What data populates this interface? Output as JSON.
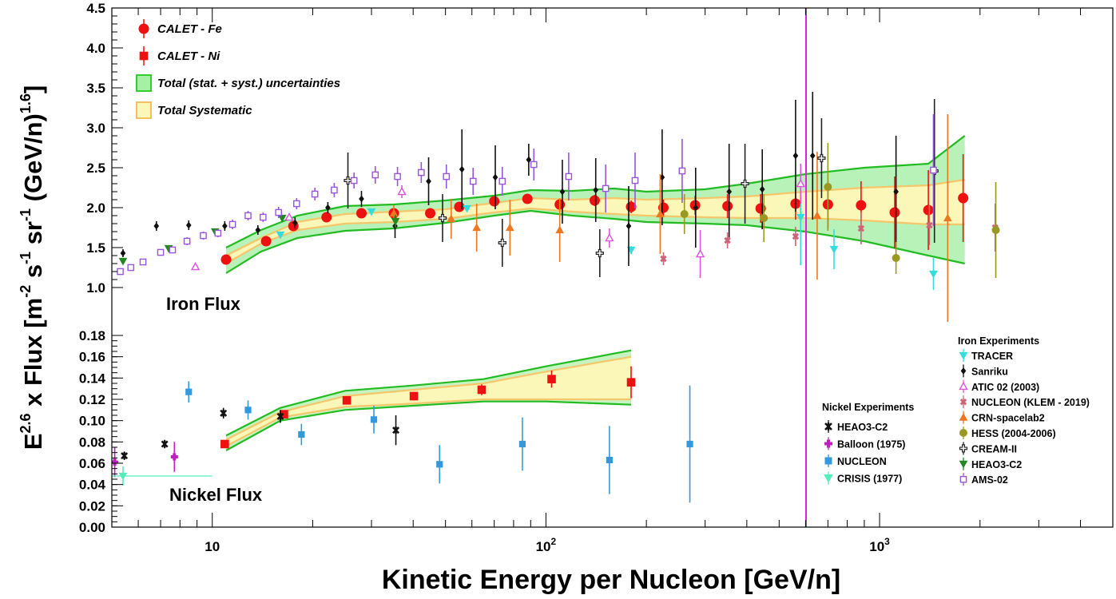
{
  "chart_data": [
    {
      "type": "scatter",
      "panel": "Iron Flux",
      "panel_label": "Iron Flux",
      "xlabel": "Kinetic Energy per Nucleon [GeV/n]",
      "ylabel_main": "E",
      "ylabel_sup1": "2.6",
      "ylabel_mid": " x Flux [m",
      "ylabel_sup2": "-2",
      "ylabel_mid2": " s",
      "ylabel_sup3": "-1",
      "ylabel_mid3": " sr",
      "ylabel_sup4": "-1",
      "ylabel_mid4": " (GeV/n)",
      "ylabel_sup5": "1.6",
      "ylabel_end": "]",
      "x_scale": "log",
      "xlim": [
        5,
        5000
      ],
      "ylim": [
        0.9,
        4.5
      ],
      "x_tick_labels": [
        {
          "v": 10,
          "label": "10"
        },
        {
          "v": 100,
          "label": "10"
        },
        {
          "v": 1000,
          "label": "10"
        }
      ],
      "x_tick_exps": [
        "",
        "2",
        "3"
      ],
      "y_tick_labels": [
        "1.0",
        "1.5",
        "2.0",
        "2.5",
        "3.0",
        "3.5",
        "4.0",
        "4.5"
      ],
      "y_ticks": [
        1.0,
        1.5,
        2.0,
        2.5,
        3.0,
        3.5,
        4.0,
        4.5
      ],
      "legend": [
        {
          "label": "CALET - Fe",
          "marker": "circle",
          "color": "#ee1111"
        },
        {
          "label": "CALET - Ni",
          "marker": "square",
          "color": "#ee1111"
        },
        {
          "label": "Total (stat. + syst.) uncertainties",
          "marker": "box",
          "color": "#33cc33",
          "fill": "#a6f0a6"
        },
        {
          "label": "Total Systematic",
          "marker": "box",
          "color": "#f5c060",
          "fill": "#fbf7b8"
        }
      ],
      "experiments_title": "Iron Experiments",
      "experiments": [
        {
          "label": "TRACER",
          "marker": "tri-down",
          "color": "#33dddd"
        },
        {
          "label": "Sanriku",
          "marker": "diamond",
          "color": "#111111"
        },
        {
          "label": "ATIC 02 (2003)",
          "marker": "tri-up-open",
          "color": "#dd55dd"
        },
        {
          "label": "NUCLEON (KLEM - 2019)",
          "marker": "x",
          "color": "#cc6677"
        },
        {
          "label": "CRN-spacelab2",
          "marker": "tri-up",
          "color": "#ee7722"
        },
        {
          "label": "HESS (2004-2006)",
          "marker": "circle",
          "color": "#999922"
        },
        {
          "label": "CREAM-II",
          "marker": "cross-open",
          "color": "#222222"
        },
        {
          "label": "HEAO3-C2",
          "marker": "tri-down",
          "color": "#228822"
        },
        {
          "label": "AMS-02",
          "marker": "square-open",
          "color": "#9955dd"
        }
      ],
      "band_total": {
        "x": [
          11,
          14,
          18,
          25,
          35,
          50,
          70,
          90,
          120,
          160,
          200,
          300,
          400,
          600,
          900,
          1400,
          1800
        ],
        "low": [
          1.18,
          1.45,
          1.62,
          1.71,
          1.74,
          1.81,
          1.9,
          1.96,
          1.9,
          1.86,
          1.82,
          1.8,
          1.78,
          1.7,
          1.58,
          1.4,
          1.3
        ],
        "high": [
          1.5,
          1.72,
          1.9,
          2.02,
          2.04,
          2.09,
          2.15,
          2.22,
          2.21,
          2.24,
          2.2,
          2.23,
          2.3,
          2.42,
          2.5,
          2.55,
          2.9
        ]
      },
      "band_syst": {
        "x": [
          11,
          14,
          18,
          25,
          35,
          50,
          70,
          90,
          120,
          160,
          200,
          300,
          400,
          600,
          900,
          1400,
          1800
        ],
        "low": [
          1.3,
          1.55,
          1.72,
          1.8,
          1.82,
          1.86,
          1.94,
          1.99,
          1.95,
          1.92,
          1.9,
          1.88,
          1.87,
          1.87,
          1.84,
          1.79,
          1.79
        ],
        "high": [
          1.4,
          1.62,
          1.82,
          1.92,
          1.95,
          1.98,
          2.06,
          2.12,
          2.1,
          2.12,
          2.1,
          2.12,
          2.14,
          2.2,
          2.25,
          2.28,
          2.35
        ]
      },
      "series": [
        {
          "name": "CALET - Fe",
          "marker": "circle",
          "color": "#ee1111",
          "x": [
            11,
            14.5,
            17.5,
            22,
            28,
            35,
            45,
            55,
            70,
            88,
            110,
            140,
            180,
            225,
            280,
            350,
            440,
            560,
            700,
            880,
            1110,
            1400,
            1780
          ],
          "y": [
            1.35,
            1.58,
            1.77,
            1.88,
            1.93,
            1.93,
            1.93,
            2.01,
            2.08,
            2.11,
            2.04,
            2.09,
            2.01,
            2.0,
            2.03,
            2.02,
            1.99,
            2.05,
            2.04,
            2.03,
            1.94,
            1.97,
            2.12
          ],
          "err": [
            0.02,
            0.02,
            0.03,
            0.03,
            0.03,
            0.03,
            0.04,
            0.04,
            0.05,
            0.05,
            0.06,
            0.07,
            0.08,
            0.1,
            0.12,
            0.15,
            0.18,
            0.2,
            0.3,
            0.3,
            0.45,
            0.5,
            0.55
          ]
        },
        {
          "name": "TRACER",
          "marker": "tri-down",
          "color": "#33dddd",
          "x": [
            16,
            30,
            58,
            180,
            580,
            730,
            1450
          ],
          "y": [
            1.66,
            1.95,
            1.99,
            1.47,
            1.88,
            1.48,
            1.17
          ],
          "err": [
            0.03,
            0.03,
            0.04,
            0.05,
            0.6,
            0.25,
            0.2
          ]
        },
        {
          "name": "Sanriku",
          "marker": "diamond",
          "color": "#111111",
          "x": [
            5.4,
            6.8,
            8.5,
            10.9,
            13.7,
            17.7,
            22.2,
            28,
            35.3,
            44.5,
            56,
            70.5,
            88.8,
            112,
            141,
            177,
            223,
            281,
            354,
            445,
            560,
            630,
            1120
          ],
          "y": [
            1.43,
            1.77,
            1.78,
            1.77,
            1.72,
            1.81,
            2.0,
            2.11,
            1.77,
            2.33,
            2.48,
            2.38,
            2.6,
            2.2,
            2.22,
            1.77,
            2.38,
            2.0,
            2.2,
            2.23,
            2.65,
            2.65,
            2.2
          ],
          "err": [
            0.05,
            0.06,
            0.06,
            0.06,
            0.06,
            0.07,
            0.07,
            0.1,
            0.15,
            0.3,
            0.5,
            0.4,
            0.2,
            0.4,
            0.4,
            0.5,
            0.6,
            0.5,
            0.6,
            0.5,
            0.7,
            0.8,
            0.7
          ]
        },
        {
          "name": "ATIC 02 (2003)",
          "marker": "tri-up-open",
          "color": "#dd55dd",
          "x": [
            8.9,
            17,
            37,
            155,
            290,
            580
          ],
          "y": [
            1.26,
            1.88,
            2.2,
            1.62,
            1.42,
            2.3
          ],
          "err": [
            0.02,
            0.04,
            0.08,
            0.12,
            0.3,
            0.25
          ]
        },
        {
          "name": "NUCLEON (KLEM - 2019)",
          "marker": "x",
          "color": "#cc6677",
          "x": [
            225,
            350,
            560,
            880,
            1410,
            2220
          ],
          "y": [
            1.36,
            1.59,
            1.64,
            1.74,
            1.78,
            1.75
          ],
          "err": [
            0.08,
            0.1,
            0.12,
            0.2,
            0.25,
            0.3
          ]
        },
        {
          "name": "CRN-spacelab2",
          "marker": "tri-up",
          "color": "#ee7722",
          "x": [
            35,
            52,
            62,
            78,
            110,
            220,
            650,
            1600
          ],
          "y": [
            1.93,
            1.86,
            1.75,
            1.75,
            1.72,
            1.92,
            1.9,
            1.87
          ],
          "err": [
            0.1,
            0.25,
            0.3,
            0.35,
            0.4,
            0.5,
            0.8,
            1.3
          ]
        },
        {
          "name": "HESS (2004-2006)",
          "marker": "circle",
          "color": "#999922",
          "x": [
            260,
            450,
            700,
            1120,
            2230
          ],
          "y": [
            1.92,
            1.87,
            2.26,
            1.37,
            1.72
          ],
          "err": [
            0.25,
            0.3,
            0.55,
            0.2,
            0.6
          ]
        },
        {
          "name": "CREAM-II",
          "marker": "cross-open",
          "color": "#222222",
          "x": [
            25.5,
            49,
            74,
            145,
            395,
            670,
            1460
          ],
          "y": [
            2.34,
            1.87,
            1.56,
            1.43,
            2.3,
            2.62,
            2.46
          ],
          "err": [
            0.35,
            0.3,
            0.3,
            0.3,
            0.5,
            0.5,
            0.9
          ]
        },
        {
          "name": "HEAO3-C2",
          "marker": "tri-down",
          "color": "#228822",
          "x": [
            5.4,
            7.4,
            10.2,
            16.2,
            35.4
          ],
          "y": [
            1.33,
            1.49,
            1.7,
            1.87,
            1.83
          ],
          "err": [
            0.03,
            0.03,
            0.03,
            0.04,
            0.08
          ]
        },
        {
          "name": "AMS-02",
          "marker": "square-open",
          "color": "#9955dd",
          "x": [
            5.3,
            5.7,
            6.2,
            7,
            7.6,
            8.4,
            9.4,
            10.4,
            11.5,
            12.8,
            14.2,
            15.8,
            17.9,
            20.3,
            23.2,
            26.6,
            30.8,
            35.9,
            42.3,
            50.3,
            60.5,
            74,
            92,
            117,
            151,
            185,
            256,
            1450
          ],
          "y": [
            1.2,
            1.25,
            1.32,
            1.44,
            1.47,
            1.58,
            1.65,
            1.68,
            1.79,
            1.9,
            1.88,
            1.94,
            2.05,
            2.17,
            2.22,
            2.34,
            2.41,
            2.39,
            2.44,
            2.39,
            2.33,
            2.33,
            2.54,
            2.39,
            2.24,
            2.34,
            2.46,
            2.47
          ],
          "err": [
            0.04,
            0.04,
            0.04,
            0.04,
            0.04,
            0.05,
            0.05,
            0.05,
            0.06,
            0.06,
            0.06,
            0.07,
            0.07,
            0.08,
            0.09,
            0.1,
            0.11,
            0.12,
            0.13,
            0.15,
            0.17,
            0.18,
            0.2,
            0.3,
            0.3,
            0.35,
            0.4,
            0.7
          ]
        }
      ]
    },
    {
      "type": "scatter",
      "panel": "Nickel Flux",
      "panel_label": "Nickel Flux",
      "x_scale": "log",
      "xlim": [
        5,
        5000
      ],
      "ylim": [
        0.0,
        0.18
      ],
      "y_tick_labels": [
        "0.00",
        "0.02",
        "0.04",
        "0.06",
        "0.08",
        "0.10",
        "0.12",
        "0.14",
        "0.16",
        "0.18"
      ],
      "y_ticks": [
        0,
        0.02,
        0.04,
        0.06,
        0.08,
        0.1,
        0.12,
        0.14,
        0.16,
        0.18
      ],
      "experiments_title": "Nickel Experiments",
      "experiments": [
        {
          "label": "HEAO3-C2",
          "marker": "star",
          "color": "#111111"
        },
        {
          "label": "Balloon (1975)",
          "marker": "plus",
          "color": "#bb22bb"
        },
        {
          "label": "NUCLEON",
          "marker": "square",
          "color": "#3399dd"
        },
        {
          "label": "CRISIS (1977)",
          "marker": "tri-down",
          "color": "#55eebb"
        }
      ],
      "band_total": {
        "x": [
          11,
          16,
          25,
          40,
          65,
          100,
          180
        ],
        "low": [
          0.072,
          0.1,
          0.11,
          0.114,
          0.118,
          0.118,
          0.115
        ],
        "high": [
          0.086,
          0.112,
          0.128,
          0.133,
          0.139,
          0.151,
          0.166
        ]
      },
      "band_syst": {
        "x": [
          11,
          16,
          25,
          40,
          65,
          100,
          180
        ],
        "low": [
          0.076,
          0.103,
          0.113,
          0.116,
          0.12,
          0.12,
          0.12
        ],
        "high": [
          0.082,
          0.108,
          0.123,
          0.129,
          0.135,
          0.146,
          0.16
        ]
      },
      "series": [
        {
          "name": "CALET - Ni",
          "marker": "square",
          "color": "#ee1111",
          "x": [
            10.9,
            16.4,
            25.3,
            40.2,
            64.2,
            104,
            180
          ],
          "y": [
            0.078,
            0.106,
            0.119,
            0.123,
            0.129,
            0.139,
            0.136
          ],
          "err": [
            0.002,
            0.003,
            0.003,
            0.004,
            0.005,
            0.008,
            0.015
          ]
        },
        {
          "name": "HEAO3-C2",
          "marker": "star",
          "color": "#111111",
          "x": [
            5.45,
            7.2,
            10.8,
            16,
            35.5
          ],
          "y": [
            0.067,
            0.078,
            0.107,
            0.104,
            0.091
          ],
          "err": [
            0.004,
            0.004,
            0.005,
            0.006,
            0.014
          ]
        },
        {
          "name": "Balloon (1975)",
          "marker": "plus",
          "color": "#bb22bb",
          "x": [
            5.1,
            7.7
          ],
          "y": [
            0.061,
            0.066
          ],
          "err": [
            0.014,
            0.014
          ]
        },
        {
          "name": "NUCLEON",
          "marker": "square",
          "color": "#3399dd",
          "x": [
            8.5,
            12.8,
            18.5,
            30.5,
            48,
            85,
            155,
            270
          ],
          "y": [
            0.127,
            0.11,
            0.087,
            0.101,
            0.059,
            0.078,
            0.063,
            0.078
          ],
          "err": [
            0.01,
            0.009,
            0.01,
            0.013,
            0.018,
            0.025,
            0.032,
            0.055
          ]
        },
        {
          "name": "CRISIS (1977)",
          "marker": "tri-down",
          "color": "#55eebb",
          "x": [
            5.4
          ],
          "y": [
            0.048
          ],
          "err": [
            0.009
          ],
          "xerr_range": [
            5.0,
            10.0
          ]
        }
      ]
    }
  ]
}
